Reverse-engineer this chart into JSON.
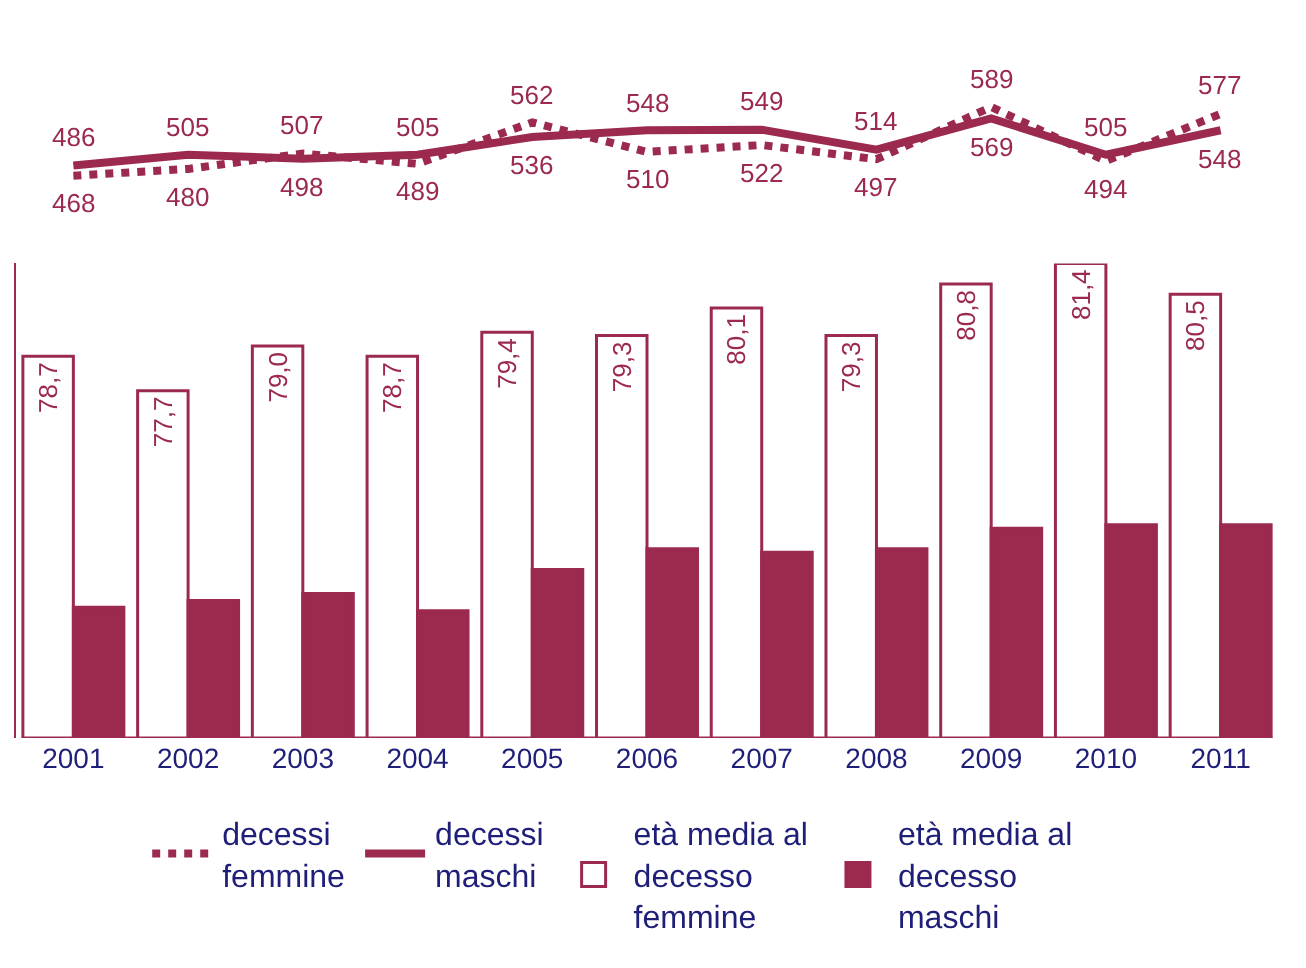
{
  "chart_data": [
    {
      "type": "line",
      "categories": [
        "2001",
        "2002",
        "2003",
        "2004",
        "2005",
        "2006",
        "2007",
        "2008",
        "2009",
        "2010",
        "2011"
      ],
      "series": [
        {
          "name": "decessi\nfemmine",
          "line_style": "dotted",
          "color": "#9b2a4e",
          "values": [
            468,
            480,
            507,
            489,
            562,
            510,
            522,
            497,
            589,
            494,
            577
          ],
          "value_labels": [
            "468",
            "480",
            "507",
            "489",
            "562",
            "510",
            "522",
            "497",
            "589",
            "494",
            "577"
          ]
        },
        {
          "name": "decessi\nmaschi",
          "line_style": "solid",
          "color": "#9b2a4e",
          "values": [
            486,
            505,
            498,
            505,
            536,
            548,
            549,
            514,
            569,
            505,
            548
          ],
          "value_labels": [
            "486",
            "505",
            "498",
            "505",
            "536",
            "548",
            "549",
            "514",
            "569",
            "505",
            "548"
          ]
        }
      ],
      "tick_labels": false,
      "legend": "bottom",
      "marker": "none"
    },
    {
      "type": "bar",
      "categories": [
        "2001",
        "2002",
        "2003",
        "2004",
        "2005",
        "2006",
        "2007",
        "2008",
        "2009",
        "2010",
        "2011"
      ],
      "series": [
        {
          "name": "età media al\ndecesso\nfemmine",
          "color": "#ffffff",
          "values": [
            78.7,
            77.7,
            79.0,
            78.7,
            79.4,
            79.3,
            80.1,
            79.3,
            80.8,
            81.4,
            80.5
          ],
          "value_labels": [
            "78,7",
            "77,7",
            "79,0",
            "78,7",
            "79,4",
            "79,3",
            "80,1",
            "79,3",
            "80,8",
            "81,4",
            "80,5"
          ]
        },
        {
          "name": "età media al\ndecesso\nmaschi",
          "color": "#9b2a4e",
          "values": [
            71.4,
            71.6,
            71.8,
            71.3,
            72.5,
            73.1,
            73.0,
            73.1,
            73.7,
            73.8,
            73.8
          ]
        }
      ],
      "ylim": [
        67.6,
        81.4
      ],
      "tick_labels": "x",
      "legend": "bottom"
    }
  ]
}
